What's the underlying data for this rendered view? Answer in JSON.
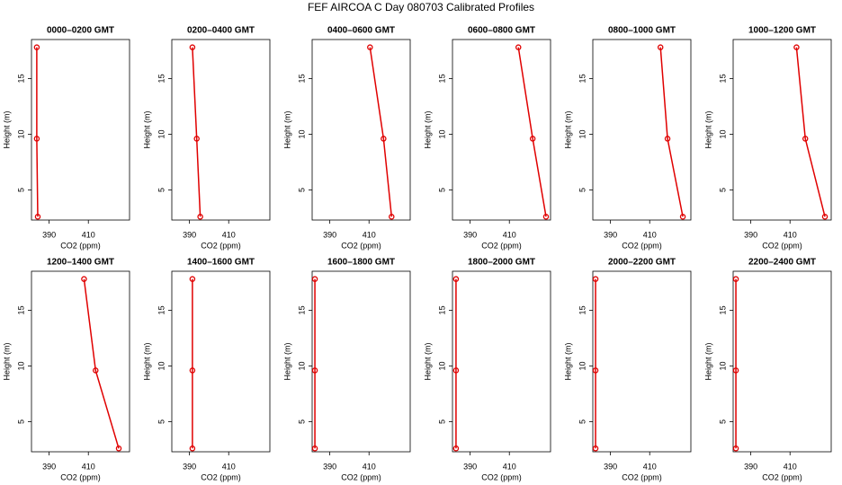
{
  "title": "FEF AIRCOA C  Day 080703  Calibrated Profiles",
  "chart_data": [
    {
      "type": "line",
      "title": "0000–0200 GMT",
      "xlabel": "CO2 (ppm)",
      "ylabel": "Height (m)",
      "color": "#e00000",
      "x": [
        384.2,
        383.7,
        383.7
      ],
      "values": [
        2.6,
        9.6,
        17.8
      ],
      "xlim": [
        381,
        431
      ],
      "ylim": [
        2.3,
        18.5
      ],
      "xticks": [
        390,
        410
      ],
      "yticks": [
        5,
        10,
        15
      ]
    },
    {
      "type": "line",
      "title": "0200–0400 GMT",
      "xlabel": "CO2 (ppm)",
      "ylabel": "Height (m)",
      "color": "#e00000",
      "x": [
        395.5,
        393.7,
        391.5
      ],
      "values": [
        2.6,
        9.6,
        17.8
      ],
      "xlim": [
        381,
        431
      ],
      "ylim": [
        2.3,
        18.5
      ],
      "xticks": [
        390,
        410
      ],
      "yticks": [
        5,
        10,
        15
      ]
    },
    {
      "type": "line",
      "title": "0400–0600 GMT",
      "xlabel": "CO2 (ppm)",
      "ylabel": "Height (m)",
      "color": "#e00000",
      "x": [
        421.5,
        417.4,
        410.5
      ],
      "values": [
        2.6,
        9.6,
        17.8
      ],
      "xlim": [
        381,
        431
      ],
      "ylim": [
        2.3,
        18.5
      ],
      "xticks": [
        390,
        410
      ],
      "yticks": [
        5,
        10,
        15
      ]
    },
    {
      "type": "line",
      "title": "0600–0800 GMT",
      "xlabel": "CO2 (ppm)",
      "ylabel": "Height (m)",
      "color": "#e00000",
      "x": [
        428.7,
        421.9,
        414.6
      ],
      "values": [
        2.6,
        9.6,
        17.8
      ],
      "xlim": [
        381,
        431
      ],
      "ylim": [
        2.3,
        18.5
      ],
      "xticks": [
        390,
        410
      ],
      "yticks": [
        5,
        10,
        15
      ]
    },
    {
      "type": "line",
      "title": "0800–1000 GMT",
      "xlabel": "CO2 (ppm)",
      "ylabel": "Height (m)",
      "color": "#e00000",
      "x": [
        426.9,
        419.1,
        415.5
      ],
      "values": [
        2.6,
        9.6,
        17.8
      ],
      "xlim": [
        381,
        431
      ],
      "ylim": [
        2.3,
        18.5
      ],
      "xticks": [
        390,
        410
      ],
      "yticks": [
        5,
        10,
        15
      ]
    },
    {
      "type": "line",
      "title": "1000–1200 GMT",
      "xlabel": "CO2 (ppm)",
      "ylabel": "Height (m)",
      "color": "#e00000",
      "x": [
        427.8,
        417.8,
        413.3
      ],
      "values": [
        2.6,
        9.6,
        17.8
      ],
      "xlim": [
        381,
        431
      ],
      "ylim": [
        2.3,
        18.5
      ],
      "xticks": [
        390,
        410
      ],
      "yticks": [
        5,
        10,
        15
      ]
    },
    {
      "type": "line",
      "title": "1200–1400 GMT",
      "xlabel": "CO2 (ppm)",
      "ylabel": "Height (m)",
      "color": "#e00000",
      "x": [
        425.5,
        413.7,
        407.8
      ],
      "values": [
        2.6,
        9.6,
        17.8
      ],
      "xlim": [
        381,
        431
      ],
      "ylim": [
        2.3,
        18.5
      ],
      "xticks": [
        390,
        410
      ],
      "yticks": [
        5,
        10,
        15
      ]
    },
    {
      "type": "line",
      "title": "1400–1600 GMT",
      "xlabel": "CO2 (ppm)",
      "ylabel": "Height (m)",
      "color": "#e00000",
      "x": [
        391.5,
        391.5,
        391.5
      ],
      "values": [
        2.6,
        9.6,
        17.8
      ],
      "xlim": [
        381,
        431
      ],
      "ylim": [
        2.3,
        18.5
      ],
      "xticks": [
        390,
        410
      ],
      "yticks": [
        5,
        10,
        15
      ]
    },
    {
      "type": "line",
      "title": "1600–1800 GMT",
      "xlabel": "CO2 (ppm)",
      "ylabel": "Height (m)",
      "color": "#e00000",
      "x": [
        382.4,
        382.4,
        382.4
      ],
      "values": [
        2.6,
        9.6,
        17.8
      ],
      "xlim": [
        381,
        431
      ],
      "ylim": [
        2.3,
        18.5
      ],
      "xticks": [
        390,
        410
      ],
      "yticks": [
        5,
        10,
        15
      ]
    },
    {
      "type": "line",
      "title": "1800–2000 GMT",
      "xlabel": "CO2 (ppm)",
      "ylabel": "Height (m)",
      "color": "#e00000",
      "x": [
        382.8,
        382.8,
        382.8
      ],
      "values": [
        2.6,
        9.6,
        17.8
      ],
      "xlim": [
        381,
        431
      ],
      "ylim": [
        2.3,
        18.5
      ],
      "xticks": [
        390,
        410
      ],
      "yticks": [
        5,
        10,
        15
      ]
    },
    {
      "type": "line",
      "title": "2000–2200 GMT",
      "xlabel": "CO2 (ppm)",
      "ylabel": "Height (m)",
      "color": "#e00000",
      "x": [
        382.4,
        382.4,
        382.4
      ],
      "values": [
        2.6,
        9.6,
        17.8
      ],
      "xlim": [
        381,
        431
      ],
      "ylim": [
        2.3,
        18.5
      ],
      "xticks": [
        390,
        410
      ],
      "yticks": [
        5,
        10,
        15
      ]
    },
    {
      "type": "line",
      "title": "2200–2400 GMT",
      "xlabel": "CO2 (ppm)",
      "ylabel": "Height (m)",
      "color": "#e00000",
      "x": [
        382.4,
        382.4,
        382.4
      ],
      "values": [
        2.6,
        9.6,
        17.8
      ],
      "xlim": [
        381,
        431
      ],
      "ylim": [
        2.3,
        18.5
      ],
      "xticks": [
        390,
        410
      ],
      "yticks": [
        5,
        10,
        15
      ]
    }
  ]
}
